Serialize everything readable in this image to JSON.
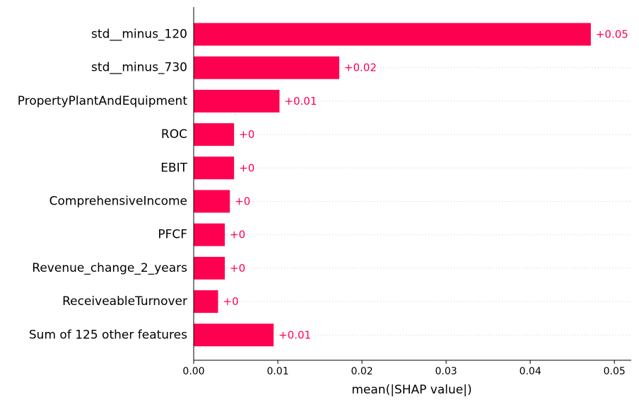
{
  "chart_data": {
    "type": "bar",
    "orientation": "horizontal",
    "categories": [
      "std__minus_120",
      "std__minus_730",
      "PropertyPlantAndEquipment",
      "ROC",
      "EBIT",
      "ComprehensiveIncome",
      "PFCF",
      "Revenue_change_2_years",
      "ReceiveableTurnover",
      "Sum of 125 other features"
    ],
    "values": [
      0.0472,
      0.0173,
      0.0102,
      0.0048,
      0.0048,
      0.0043,
      0.0037,
      0.0037,
      0.0029,
      0.0095
    ],
    "value_labels": [
      "+0.05",
      "+0.02",
      "+0.01",
      "+0",
      "+0",
      "+0",
      "+0",
      "+0",
      "+0",
      "+0.01"
    ],
    "xlabel": "mean(|SHAP value|)",
    "ylabel": "",
    "title": "",
    "xlim": [
      0,
      0.052
    ],
    "xticks": [
      0.0,
      0.01,
      0.02,
      0.03,
      0.04,
      0.05
    ],
    "xtick_labels": [
      "0.00",
      "0.01",
      "0.02",
      "0.03",
      "0.04",
      "0.05"
    ],
    "grid": "dotted horizontal guide lines per row",
    "legend": "none",
    "colors": {
      "bar": "#ff0051",
      "label": "#ff0051",
      "grid": "#cccccc",
      "axis": "#000000"
    }
  }
}
